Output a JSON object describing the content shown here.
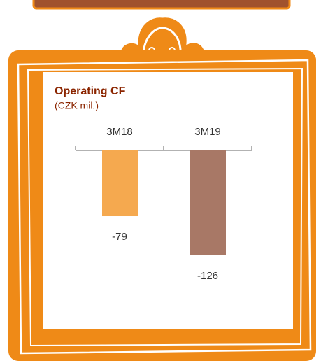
{
  "chart_data": {
    "type": "bar",
    "title": "Operating CF",
    "subtitle": "(CZK mil.)",
    "categories": [
      "3M18",
      "3M19"
    ],
    "values": [
      -79,
      -126
    ],
    "colors": [
      "#f5a94f",
      "#a87866"
    ]
  }
}
